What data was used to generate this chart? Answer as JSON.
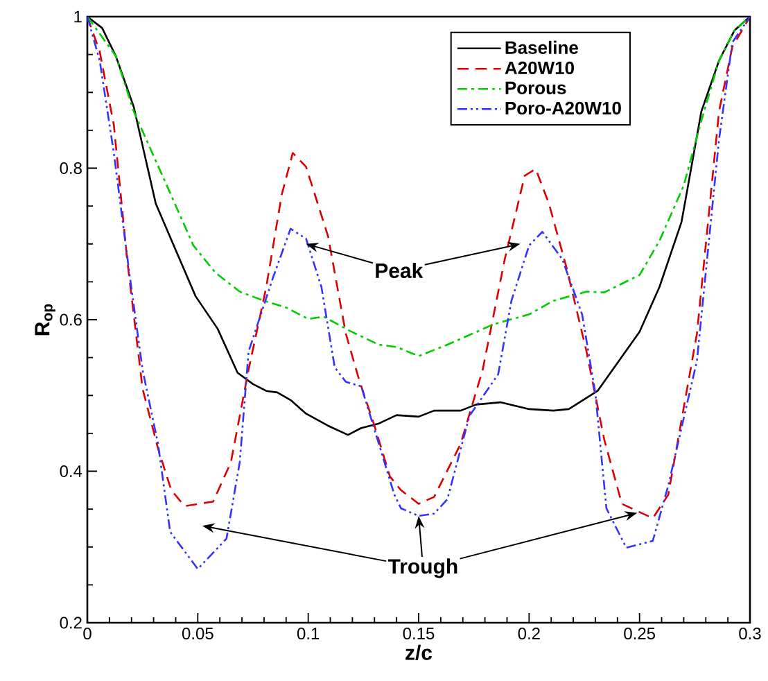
{
  "chart_data": {
    "type": "line",
    "xlabel": "z/c",
    "ylabel": "R$_{op}$",
    "xlim": [
      0,
      0.3
    ],
    "ylim": [
      0.2,
      1
    ],
    "xticks": [
      0,
      0.05,
      0.1,
      0.15,
      0.2,
      0.25,
      0.3
    ],
    "yticks": [
      0.2,
      0.4,
      0.6,
      0.8,
      1
    ],
    "grid": false,
    "legend": "top right",
    "marker": "none",
    "annotations": [
      {
        "text": "Peak",
        "x": 0.099,
        "y": 0.7
      },
      {
        "text": "Trough",
        "x": 0.15,
        "y": 0.341
      }
    ],
    "series": [
      {
        "name": "Baseline",
        "color": "#000000",
        "line_style": "solid",
        "x": [
          0,
          0.0067,
          0.0129,
          0.021,
          0.031,
          0.04,
          0.049,
          0.059,
          0.068,
          0.075,
          0.081,
          0.086,
          0.092,
          0.099,
          0.109,
          0.118,
          0.124,
          0.132,
          0.14,
          0.15,
          0.157,
          0.169,
          0.176,
          0.187,
          0.2,
          0.211,
          0.218,
          0.231,
          0.25,
          0.259,
          0.269,
          0.278,
          0.286,
          0.293,
          0.3
        ],
        "values": [
          1,
          0.985,
          0.948,
          0.881,
          0.753,
          0.692,
          0.631,
          0.588,
          0.53,
          0.515,
          0.506,
          0.504,
          0.494,
          0.476,
          0.46,
          0.448,
          0.457,
          0.463,
          0.474,
          0.472,
          0.48,
          0.48,
          0.488,
          0.491,
          0.482,
          0.48,
          0.482,
          0.506,
          0.584,
          0.643,
          0.729,
          0.875,
          0.942,
          0.982,
          1
        ]
      },
      {
        "name": "A20W10",
        "color": "#dd0000",
        "line_style": "dashed",
        "x": [
          0,
          0.0056,
          0.012,
          0.018,
          0.025,
          0.032,
          0.038,
          0.044,
          0.057,
          0.065,
          0.073,
          0.081,
          0.088,
          0.093,
          0.099,
          0.109,
          0.117,
          0.123,
          0.13,
          0.137,
          0.142,
          0.15,
          0.157,
          0.169,
          0.179,
          0.189,
          0.198,
          0.203,
          0.209,
          0.217,
          0.226,
          0.234,
          0.242,
          0.256,
          0.263,
          0.276,
          0.286,
          0.292,
          0.3
        ],
        "values": [
          1,
          0.954,
          0.857,
          0.68,
          0.509,
          0.43,
          0.375,
          0.354,
          0.36,
          0.412,
          0.534,
          0.643,
          0.765,
          0.82,
          0.802,
          0.71,
          0.582,
          0.521,
          0.46,
          0.393,
          0.375,
          0.357,
          0.366,
          0.436,
          0.534,
          0.68,
          0.79,
          0.799,
          0.753,
          0.668,
          0.558,
          0.442,
          0.357,
          0.338,
          0.369,
          0.582,
          0.875,
          0.96,
          1
        ]
      },
      {
        "name": "Porous",
        "color": "#00cc00",
        "line_style": "dashdot",
        "x": [
          0,
          0.0129,
          0.021,
          0.036,
          0.048,
          0.058,
          0.069,
          0.08,
          0.09,
          0.1,
          0.107,
          0.119,
          0.132,
          0.14,
          0.15,
          0.163,
          0.184,
          0.2,
          0.211,
          0.226,
          0.234,
          0.25,
          0.259,
          0.27,
          0.278,
          0.286,
          0.293,
          0.3
        ],
        "values": [
          1,
          0.948,
          0.875,
          0.777,
          0.698,
          0.662,
          0.637,
          0.625,
          0.616,
          0.601,
          0.604,
          0.585,
          0.567,
          0.564,
          0.552,
          0.567,
          0.594,
          0.607,
          0.625,
          0.637,
          0.636,
          0.659,
          0.704,
          0.777,
          0.863,
          0.942,
          0.982,
          1
        ]
      },
      {
        "name": "Poro-A20W10",
        "color": "#3333ff",
        "line_style": "dashdotdot",
        "x": [
          0,
          0.0056,
          0.012,
          0.019,
          0.025,
          0.032,
          0.0375,
          0.05,
          0.063,
          0.069,
          0.073,
          0.084,
          0.092,
          0.099,
          0.106,
          0.112,
          0.117,
          0.124,
          0.132,
          0.139,
          0.142,
          0.15,
          0.157,
          0.163,
          0.173,
          0.186,
          0.192,
          0.2,
          0.206,
          0.215,
          0.224,
          0.23,
          0.235,
          0.244,
          0.256,
          0.263,
          0.276,
          0.286,
          0.292,
          0.3
        ],
        "values": [
          1,
          0.942,
          0.82,
          0.662,
          0.534,
          0.436,
          0.32,
          0.271,
          0.311,
          0.412,
          0.558,
          0.655,
          0.72,
          0.707,
          0.643,
          0.537,
          0.518,
          0.512,
          0.436,
          0.369,
          0.351,
          0.341,
          0.344,
          0.363,
          0.473,
          0.528,
          0.625,
          0.698,
          0.716,
          0.68,
          0.607,
          0.503,
          0.351,
          0.299,
          0.308,
          0.381,
          0.546,
          0.838,
          0.966,
          1
        ]
      }
    ]
  }
}
